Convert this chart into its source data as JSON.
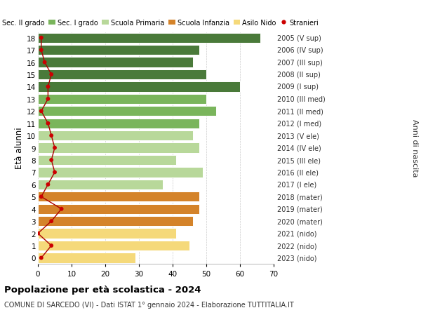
{
  "ages": [
    18,
    17,
    16,
    15,
    14,
    13,
    12,
    11,
    10,
    9,
    8,
    7,
    6,
    5,
    4,
    3,
    2,
    1,
    0
  ],
  "bar_values": [
    66,
    48,
    46,
    50,
    60,
    50,
    53,
    48,
    46,
    48,
    41,
    49,
    37,
    48,
    48,
    46,
    41,
    45,
    29
  ],
  "stranieri_values": [
    1,
    1,
    2,
    4,
    3,
    3,
    1,
    3,
    4,
    5,
    4,
    5,
    3,
    1,
    7,
    4,
    0,
    4,
    1
  ],
  "right_labels": [
    "2005 (V sup)",
    "2006 (IV sup)",
    "2007 (III sup)",
    "2008 (II sup)",
    "2009 (I sup)",
    "2010 (III med)",
    "2011 (II med)",
    "2012 (I med)",
    "2013 (V ele)",
    "2014 (IV ele)",
    "2015 (III ele)",
    "2016 (II ele)",
    "2017 (I ele)",
    "2018 (mater)",
    "2019 (mater)",
    "2020 (mater)",
    "2021 (nido)",
    "2022 (nido)",
    "2023 (nido)"
  ],
  "bar_colors": [
    "#4a7a3a",
    "#4a7a3a",
    "#4a7a3a",
    "#4a7a3a",
    "#4a7a3a",
    "#7ab55c",
    "#7ab55c",
    "#7ab55c",
    "#b8d89a",
    "#b8d89a",
    "#b8d89a",
    "#b8d89a",
    "#b8d89a",
    "#d4832a",
    "#d4832a",
    "#d4832a",
    "#f5d97a",
    "#f5d97a",
    "#f5d97a"
  ],
  "legend_labels": [
    "Sec. II grado",
    "Sec. I grado",
    "Scuola Primaria",
    "Scuola Infanzia",
    "Asilo Nido",
    "Stranieri"
  ],
  "legend_colors": [
    "#4a7a3a",
    "#7ab55c",
    "#b8d89a",
    "#d4832a",
    "#f5d97a",
    "#cc0000"
  ],
  "ylabel": "Età alunni",
  "right_ylabel": "Anni di nascita",
  "title": "Popolazione per età scolastica - 2024",
  "subtitle": "COMUNE DI SARCEDO (VI) - Dati ISTAT 1° gennaio 2024 - Elaborazione TUTTITALIA.IT",
  "xlim": [
    0,
    70
  ],
  "background_color": "#ffffff",
  "grid_color": "#cccccc",
  "stranieri_color": "#cc0000",
  "stranieri_line_color": "#aa0000"
}
